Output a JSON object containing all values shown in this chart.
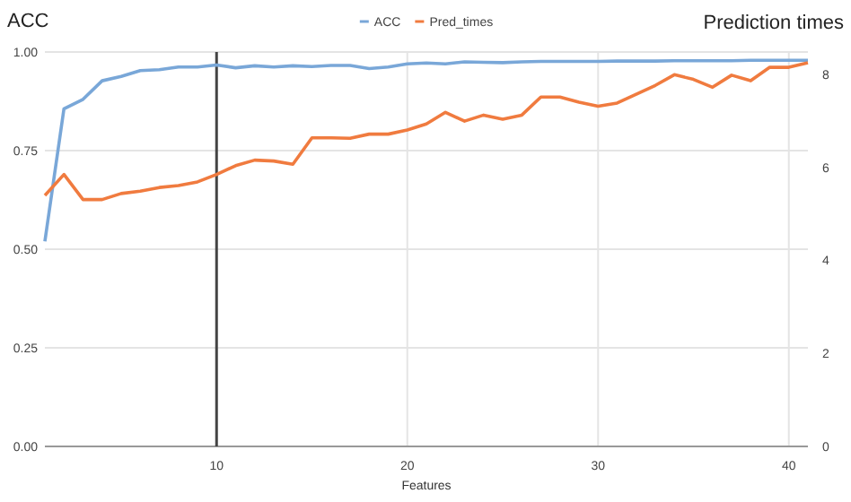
{
  "chart_data": {
    "type": "line",
    "xlabel": "Features",
    "ylabel": "ACC",
    "y2label": "Prediction times",
    "x": [
      1,
      2,
      3,
      4,
      5,
      6,
      7,
      8,
      9,
      10,
      11,
      12,
      13,
      14,
      15,
      16,
      17,
      18,
      19,
      20,
      21,
      22,
      23,
      24,
      25,
      26,
      27,
      28,
      29,
      30,
      31,
      32,
      33,
      34,
      35,
      36,
      37,
      38,
      39,
      40,
      41
    ],
    "series": [
      {
        "name": "ACC",
        "color": "#79a7d8",
        "values": [
          0.52,
          0.856,
          0.88,
          0.927,
          0.938,
          0.953,
          0.955,
          0.962,
          0.962,
          0.967,
          0.96,
          0.965,
          0.962,
          0.965,
          0.963,
          0.966,
          0.966,
          0.958,
          0.962,
          0.97,
          0.972,
          0.97,
          0.975,
          0.974,
          0.973,
          0.975,
          0.976,
          0.976,
          0.976,
          0.976,
          0.977,
          0.977,
          0.977,
          0.978,
          0.978,
          0.978,
          0.978,
          0.979,
          0.979,
          0.979,
          0.979
        ]
      },
      {
        "name": "Pred_times",
        "color": "#f07b3f",
        "axis": "y2",
        "values": [
          5.41,
          5.86,
          5.32,
          5.32,
          5.45,
          5.5,
          5.58,
          5.62,
          5.7,
          5.86,
          6.05,
          6.17,
          6.15,
          6.08,
          6.65,
          6.65,
          6.64,
          6.73,
          6.73,
          6.82,
          6.95,
          7.2,
          7.01,
          7.14,
          7.05,
          7.14,
          7.53,
          7.53,
          7.42,
          7.33,
          7.4,
          7.59,
          7.78,
          8.01,
          7.91,
          7.74,
          8.0,
          7.88,
          8.17,
          8.17,
          8.27
        ]
      }
    ],
    "xlim": [
      1,
      41
    ],
    "xticks": [
      10,
      20,
      30,
      40
    ],
    "ylim": [
      0,
      1
    ],
    "yticks": [
      {
        "value": 0,
        "label": "0.00"
      },
      {
        "value": 0.25,
        "label": "0.25"
      },
      {
        "value": 0.5,
        "label": "0.50"
      },
      {
        "value": 0.75,
        "label": "0.75"
      },
      {
        "value": 1,
        "label": "1.00"
      }
    ],
    "y2lim": [
      0,
      8.5
    ],
    "y2ticks": [
      0,
      2,
      4,
      6,
      8
    ],
    "ref_lines": [
      {
        "axis": "x",
        "value": 10,
        "color": "#444444"
      }
    ],
    "grid": true,
    "legend": "top",
    "marker": "none",
    "line_style": "solid"
  }
}
